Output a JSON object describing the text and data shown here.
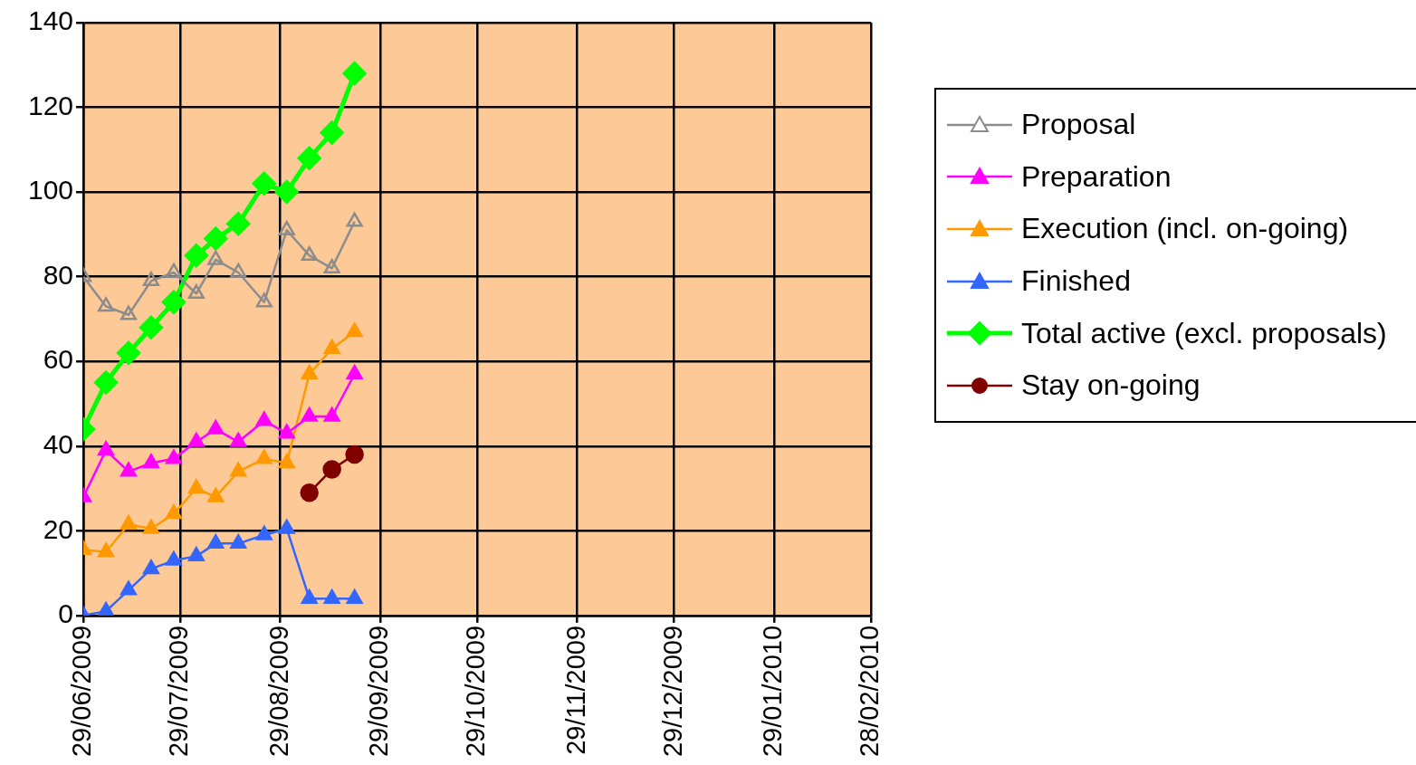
{
  "chart_data": {
    "type": "line",
    "x": [
      "2009-06-29",
      "2009-07-06",
      "2009-07-13",
      "2009-07-20",
      "2009-07-27",
      "2009-08-03",
      "2009-08-09",
      "2009-08-16",
      "2009-08-24",
      "2009-08-31",
      "2009-09-07",
      "2009-09-14",
      "2009-09-21"
    ],
    "series": [
      {
        "name": "Proposal",
        "color": "#8c8c8c",
        "marker": "triangle",
        "values": [
          80,
          73,
          71,
          79,
          81,
          76,
          84,
          81,
          74,
          91,
          85,
          82,
          93
        ]
      },
      {
        "name": "Preparation",
        "color": "#ff00ff",
        "marker": "triangle",
        "values": [
          28,
          39,
          34,
          36,
          37,
          41,
          44,
          41,
          46,
          43,
          47,
          47,
          57
        ]
      },
      {
        "name": "Execution (incl. on-going)",
        "color": "#ff9900",
        "marker": "triangle",
        "values": [
          15.5,
          15,
          21.5,
          20.5,
          24,
          30,
          28,
          34,
          37,
          36,
          57,
          63,
          67
        ]
      },
      {
        "name": "Finished",
        "color": "#3366ff",
        "marker": "triangle",
        "values": [
          0,
          1,
          6,
          11,
          13,
          14,
          17,
          17,
          19,
          20.5,
          4,
          4,
          4
        ]
      },
      {
        "name": "Total active (excl. proposals)",
        "color": "#00ff00",
        "marker": "diamond",
        "values": [
          44,
          55,
          62,
          68,
          74,
          85,
          89,
          92.5,
          102,
          100,
          108,
          114,
          128
        ]
      },
      {
        "name": "Stay on-going",
        "color": "#800000",
        "marker": "circle",
        "values": [
          null,
          null,
          null,
          null,
          null,
          null,
          null,
          null,
          null,
          null,
          29,
          34.5,
          38
        ]
      }
    ],
    "xlim": [
      "2009-06-29",
      "2010-02-28"
    ],
    "xticks": [
      {
        "value": "2009-06-29",
        "label": "29/06/2009"
      },
      {
        "value": "2009-07-29",
        "label": "29/07/2009"
      },
      {
        "value": "2009-08-29",
        "label": "29/08/2009"
      },
      {
        "value": "2009-09-29",
        "label": "29/09/2009"
      },
      {
        "value": "2009-10-29",
        "label": "29/10/2009"
      },
      {
        "value": "2009-11-29",
        "label": "29/11/2009"
      },
      {
        "value": "2009-12-29",
        "label": "29/12/2009"
      },
      {
        "value": "2010-01-29",
        "label": "29/01/2010"
      },
      {
        "value": "2010-02-28",
        "label": "28/02/2010"
      }
    ],
    "ylim": [
      0,
      140
    ],
    "yticks": [
      0,
      20,
      40,
      60,
      80,
      100,
      120,
      140
    ],
    "grid": true,
    "legend": "right",
    "line_style": "solid"
  }
}
